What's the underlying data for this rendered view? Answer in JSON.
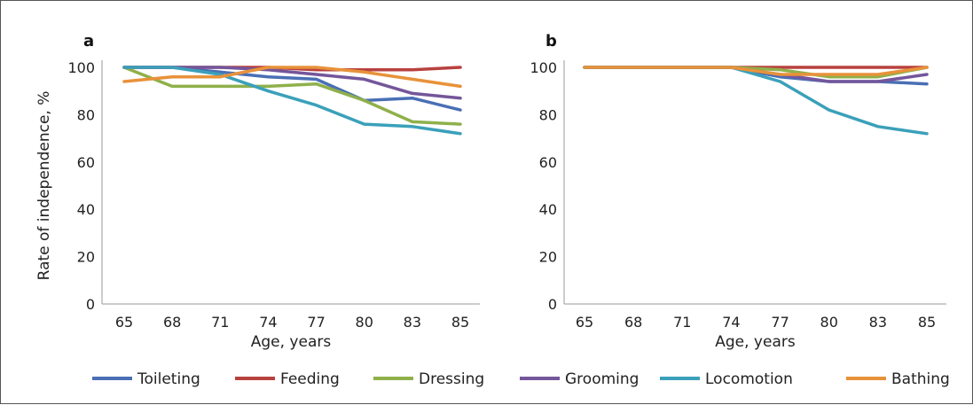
{
  "chart_data": [
    {
      "type": "line",
      "panel_label": "a",
      "xlabel": "Age, years",
      "ylabel": "Rate of independence, %",
      "categories": [
        "65",
        "68",
        "71",
        "74",
        "77",
        "80",
        "83",
        "85"
      ],
      "ylim": [
        0,
        100
      ],
      "yticks": [
        0,
        20,
        40,
        60,
        80,
        100
      ],
      "grid": false,
      "series": [
        {
          "name": "Toileting",
          "color": "#4a6fb5",
          "values": [
            100,
            100,
            98,
            96,
            95,
            86,
            87,
            82
          ]
        },
        {
          "name": "Feeding",
          "color": "#b8413f",
          "values": [
            100,
            100,
            100,
            100,
            99,
            99,
            99,
            100
          ]
        },
        {
          "name": "Dressing",
          "color": "#8fb04a",
          "values": [
            100,
            92,
            92,
            92,
            93,
            86,
            77,
            76
          ]
        },
        {
          "name": "Grooming",
          "color": "#74569b",
          "values": [
            100,
            100,
            100,
            99,
            97,
            95,
            89,
            87
          ]
        },
        {
          "name": "Locomotion",
          "color": "#3ba0ba",
          "values": [
            100,
            100,
            97,
            90,
            84,
            76,
            75,
            72
          ]
        },
        {
          "name": "Bathing",
          "color": "#e8923a",
          "values": [
            94,
            96,
            96,
            100,
            100,
            98,
            95,
            92
          ]
        }
      ]
    },
    {
      "type": "line",
      "panel_label": "b",
      "xlabel": "Age, years",
      "ylabel": "",
      "categories": [
        "65",
        "68",
        "71",
        "74",
        "77",
        "80",
        "83",
        "85"
      ],
      "ylim": [
        0,
        100
      ],
      "yticks": [
        0,
        20,
        40,
        60,
        80,
        100
      ],
      "grid": false,
      "series": [
        {
          "name": "Toileting",
          "color": "#4a6fb5",
          "values": [
            100,
            100,
            100,
            100,
            96,
            94,
            94,
            93
          ]
        },
        {
          "name": "Feeding",
          "color": "#b8413f",
          "values": [
            100,
            100,
            100,
            100,
            100,
            100,
            100,
            100
          ]
        },
        {
          "name": "Dressing",
          "color": "#8fb04a",
          "values": [
            100,
            100,
            100,
            100,
            99,
            96,
            96,
            100
          ]
        },
        {
          "name": "Grooming",
          "color": "#74569b",
          "values": [
            100,
            100,
            100,
            100,
            97,
            94,
            94,
            97
          ]
        },
        {
          "name": "Locomotion",
          "color": "#3ba0ba",
          "values": [
            100,
            100,
            100,
            100,
            94,
            82,
            75,
            72
          ]
        },
        {
          "name": "Bathing",
          "color": "#e8923a",
          "values": [
            100,
            100,
            100,
            100,
            97,
            97,
            97,
            100
          ]
        }
      ]
    }
  ],
  "legend": {
    "placement": "bottom",
    "items": [
      {
        "label": "Toileting",
        "color": "#4a6fb5"
      },
      {
        "label": "Feeding",
        "color": "#b8413f"
      },
      {
        "label": "Dressing",
        "color": "#8fb04a"
      },
      {
        "label": "Grooming",
        "color": "#74569b"
      },
      {
        "label": "Locomotion",
        "color": "#3ba0ba"
      },
      {
        "label": "Bathing",
        "color": "#e8923a"
      }
    ]
  }
}
